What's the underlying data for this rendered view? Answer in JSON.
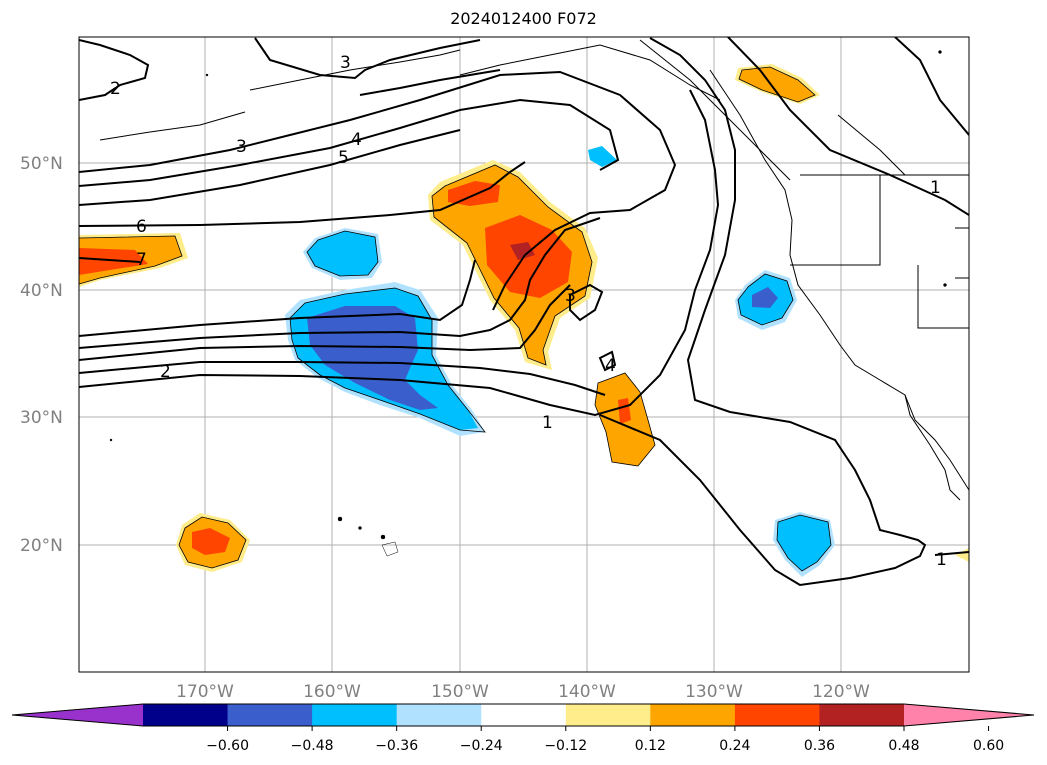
{
  "title": "2024012400 F072",
  "lat_labels": [
    "50°N",
    "40°N",
    "30°N",
    "20°N"
  ],
  "lon_labels": [
    "170°W",
    "160°W",
    "150°W",
    "140°W",
    "130°W",
    "120°W"
  ],
  "colorbar": {
    "colors": [
      "#9932cc",
      "#00008b",
      "#3a5fcd",
      "#00bfff",
      "#b0e2ff",
      "#ffffff",
      "#ffec8b",
      "#ffa500",
      "#ff4500",
      "#b22222",
      "#ff82ab"
    ],
    "labels": [
      "−0.60",
      "−0.48",
      "−0.36",
      "−0.24",
      "−0.12",
      "0.12",
      "0.24",
      "0.36",
      "0.48",
      "0.60"
    ]
  },
  "contour_labels": [
    "2",
    "3",
    "3",
    "4",
    "5",
    "6",
    "7",
    "2",
    "1",
    "3",
    "4",
    "1",
    "1"
  ]
}
